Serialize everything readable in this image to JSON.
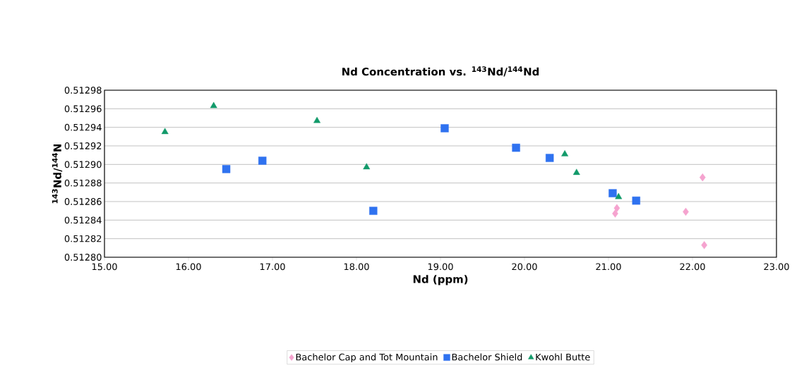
{
  "chart_data": {
    "type": "scatter",
    "title": "Nd Concentration vs. $^{143}$Nd/$^{144}$Nd",
    "xlabel": "Nd (ppm)",
    "ylabel": "$^{143}$Nd/$^{144}$N",
    "xlim": [
      15,
      23
    ],
    "ylim": [
      0.5128,
      0.51298
    ],
    "xticks": [
      {
        "value": 15,
        "label": "15.00"
      },
      {
        "value": 16,
        "label": "16.00"
      },
      {
        "value": 17,
        "label": "17.00"
      },
      {
        "value": 18,
        "label": "18.00"
      },
      {
        "value": 19,
        "label": "19.00"
      },
      {
        "value": 20,
        "label": "20.00"
      },
      {
        "value": 21,
        "label": "21.00"
      },
      {
        "value": 22,
        "label": "22.00"
      },
      {
        "value": 23,
        "label": "23.00"
      }
    ],
    "yticks": [
      {
        "value": 0.5128,
        "label": "0.51280"
      },
      0.51282,
      0.51284,
      0.51286,
      0.51288,
      {
        "value": 0.5129,
        "label": "0.51290"
      },
      0.51292,
      0.51294,
      0.51296,
      0.51298
    ],
    "grid": "y",
    "legend": "bottom",
    "series": [
      {
        "name": "Bachelor Cap and Tot Mountain",
        "color": "#f5a3cf",
        "marker": "diamond",
        "x": [
          21.1,
          21.08,
          21.92,
          22.12,
          22.14
        ],
        "values": [
          0.512853,
          0.512847,
          0.512849,
          0.512886,
          0.512813
        ]
      },
      {
        "name": "Bachelor Shield",
        "color": "#2f72f0",
        "marker": "square",
        "x": [
          16.45,
          16.88,
          18.2,
          19.05,
          19.9,
          20.3,
          21.05,
          21.33
        ],
        "values": [
          0.512895,
          0.512904,
          0.51285,
          0.512939,
          0.512918,
          0.512907,
          0.512869,
          0.512861
        ]
      },
      {
        "name": "Kwohl Butte",
        "color": "#129a6a",
        "marker": "triangle",
        "x": [
          15.72,
          16.3,
          17.53,
          18.12,
          20.48,
          20.62,
          21.12
        ],
        "values": [
          0.512935,
          0.512963,
          0.512947,
          0.512897,
          0.512911,
          0.512891,
          0.512865
        ]
      }
    ]
  }
}
